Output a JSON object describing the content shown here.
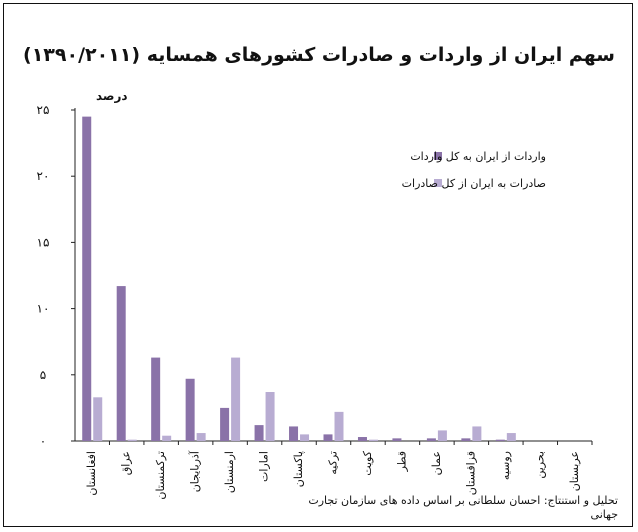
{
  "chart_data": {
    "type": "bar",
    "title": "سهم ایران از واردات و صادرات کشورهای همسایه (۱۳۹۰/۲۰۱۱)",
    "ylabel": "درصد",
    "ylim": [
      0,
      25
    ],
    "yticks": [
      0,
      5,
      10,
      15,
      20,
      25
    ],
    "yticklabels": [
      "۰",
      "۵",
      "۱۰",
      "۱۵",
      "۲۰",
      "۲۵"
    ],
    "grid": false,
    "legend": "top-right",
    "categories": [
      "افغانستان",
      "عراق",
      "ترکمنستان",
      "آذربایجان",
      "ارمنستان",
      "امارات",
      "پاکستان",
      "ترکیه",
      "کویت",
      "قطر",
      "عمان",
      "قزاقستان",
      "روسیه",
      "بحرین",
      "عربستان"
    ],
    "series": [
      {
        "name": "واردات از ایران به کل واردات",
        "color": "#8a72a8",
        "values": [
          24.5,
          11.7,
          6.3,
          4.7,
          2.5,
          1.2,
          1.1,
          0.5,
          0.3,
          0.2,
          0.2,
          0.2,
          0.1,
          0,
          0
        ]
      },
      {
        "name": "صادرات به ایران از کل صادرات",
        "color": "#b8acd2",
        "values": [
          3.3,
          0.1,
          0.4,
          0.6,
          6.3,
          3.7,
          0.5,
          2.2,
          0.1,
          0,
          0.8,
          1.1,
          0.6,
          0,
          0
        ]
      }
    ],
    "source": "تحلیل و استنتاج: احسان سلطانی بر اساس داده های سازمان تجارت جهانی"
  }
}
